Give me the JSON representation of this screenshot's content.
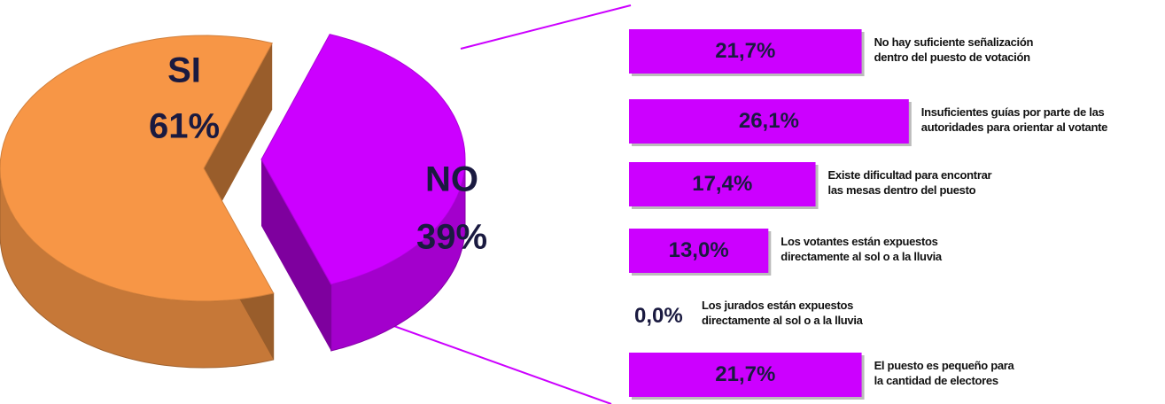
{
  "chart_data": [
    {
      "type": "pie",
      "categories": [
        "SI",
        "NO"
      ],
      "values": [
        61,
        39
      ],
      "value_labels": [
        "61%",
        "39%"
      ],
      "colors": [
        "#f79646",
        "#cc00ff"
      ]
    },
    {
      "type": "bar",
      "orientation": "horizontal",
      "categories": [
        "No hay suficiente señalización\ndentro del puesto de votación",
        "Insuficientes guías por parte de las\nautoridades para orientar al votante",
        "Existe dificultad para encontrar\nlas mesas dentro del puesto",
        "Los votantes están expuestos\ndirectamente al sol o a la lluvia",
        "Los jurados están expuestos\ndirectamente al sol o a la lluvia",
        "El puesto es pequeño para\nla cantidad de electores"
      ],
      "values": [
        21.7,
        26.1,
        17.4,
        13.0,
        0,
        21.7
      ],
      "value_labels": [
        "21,7%",
        "26,1%",
        "17,4%",
        "13,0%",
        "0,0%",
        "21,7%"
      ],
      "color": "#cc00ff"
    }
  ]
}
